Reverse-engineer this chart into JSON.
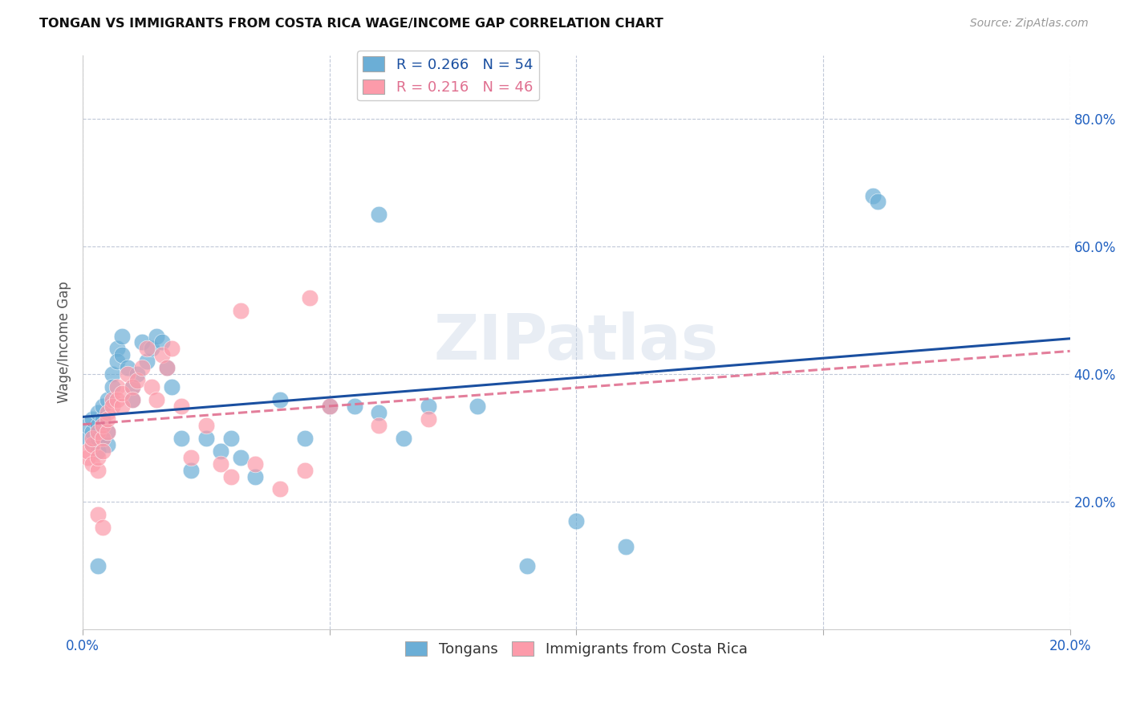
{
  "title": "TONGAN VS IMMIGRANTS FROM COSTA RICA WAGE/INCOME GAP CORRELATION CHART",
  "source": "Source: ZipAtlas.com",
  "ylabel": "Wage/Income Gap",
  "x_min": 0.0,
  "x_max": 0.2,
  "y_min": 0.0,
  "y_max": 0.9,
  "blue_R": "0.266",
  "blue_N": "54",
  "pink_R": "0.216",
  "pink_N": "46",
  "blue_color": "#6baed6",
  "pink_color": "#fc9baa",
  "blue_line_color": "#1a4fa0",
  "pink_line_color": "#e07090",
  "watermark": "ZIPatlas",
  "legend_label_blue": "Tongans",
  "legend_label_pink": "Immigrants from Costa Rica",
  "blue_x": [
    0.001,
    0.001,
    0.002,
    0.002,
    0.002,
    0.003,
    0.003,
    0.003,
    0.003,
    0.004,
    0.004,
    0.004,
    0.005,
    0.005,
    0.005,
    0.006,
    0.006,
    0.007,
    0.007,
    0.008,
    0.008,
    0.009,
    0.01,
    0.01,
    0.011,
    0.012,
    0.013,
    0.014,
    0.015,
    0.016,
    0.017,
    0.018,
    0.02,
    0.022,
    0.025,
    0.028,
    0.03,
    0.032,
    0.035,
    0.04,
    0.045,
    0.05,
    0.055,
    0.06,
    0.065,
    0.07,
    0.08,
    0.09,
    0.1,
    0.11,
    0.16,
    0.161,
    0.003,
    0.06
  ],
  "blue_y": [
    0.3,
    0.32,
    0.29,
    0.31,
    0.33,
    0.28,
    0.3,
    0.32,
    0.34,
    0.3,
    0.33,
    0.35,
    0.31,
    0.29,
    0.36,
    0.4,
    0.38,
    0.44,
    0.42,
    0.43,
    0.46,
    0.41,
    0.38,
    0.36,
    0.4,
    0.45,
    0.42,
    0.44,
    0.46,
    0.45,
    0.41,
    0.38,
    0.3,
    0.25,
    0.3,
    0.28,
    0.3,
    0.27,
    0.24,
    0.36,
    0.3,
    0.35,
    0.35,
    0.34,
    0.3,
    0.35,
    0.35,
    0.1,
    0.17,
    0.13,
    0.68,
    0.67,
    0.1,
    0.65
  ],
  "pink_x": [
    0.001,
    0.001,
    0.002,
    0.002,
    0.002,
    0.003,
    0.003,
    0.003,
    0.004,
    0.004,
    0.004,
    0.005,
    0.005,
    0.005,
    0.006,
    0.006,
    0.007,
    0.007,
    0.008,
    0.008,
    0.009,
    0.01,
    0.01,
    0.011,
    0.012,
    0.013,
    0.014,
    0.015,
    0.016,
    0.017,
    0.018,
    0.02,
    0.022,
    0.025,
    0.028,
    0.03,
    0.035,
    0.04,
    0.045,
    0.05,
    0.06,
    0.07,
    0.003,
    0.004,
    0.046,
    0.032
  ],
  "pink_y": [
    0.27,
    0.28,
    0.29,
    0.26,
    0.3,
    0.25,
    0.31,
    0.27,
    0.3,
    0.32,
    0.28,
    0.31,
    0.34,
    0.33,
    0.36,
    0.35,
    0.38,
    0.36,
    0.35,
    0.37,
    0.4,
    0.38,
    0.36,
    0.39,
    0.41,
    0.44,
    0.38,
    0.36,
    0.43,
    0.41,
    0.44,
    0.35,
    0.27,
    0.32,
    0.26,
    0.24,
    0.26,
    0.22,
    0.25,
    0.35,
    0.32,
    0.33,
    0.18,
    0.16,
    0.52,
    0.5
  ]
}
